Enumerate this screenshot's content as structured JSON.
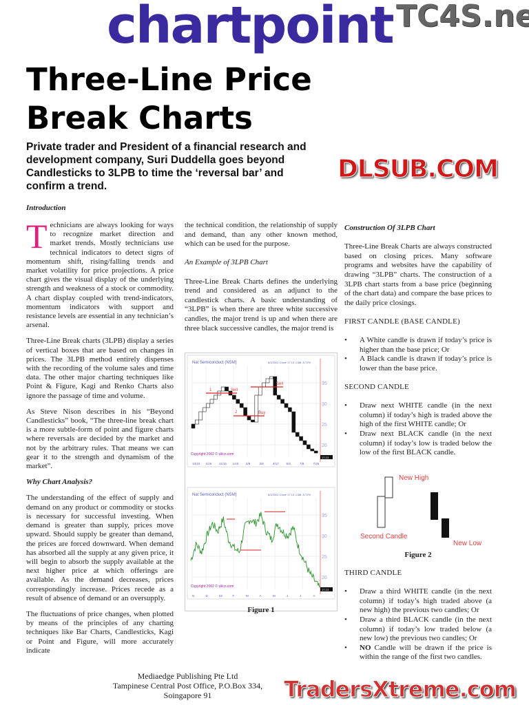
{
  "header": {
    "logo": "chartpoint",
    "watermark": "TC4S.net"
  },
  "article": {
    "title_line1": "Three-Line Price",
    "title_line2": "Break Charts",
    "subtitle": "Private trader and President of a financial research and development company, Suri Duddella goes beyond Candlesticks to 3LPB to time the ‘reversal bar’ and confirm a trend.",
    "intro_heading": "Introduction",
    "drop_cap": "T",
    "col1": {
      "p1": "echnicians are always looking for ways to recognize market direction and market trends. Mostly technicians use technical indicators to detect signs of momentum shift, rising/falling trends and market volatility for price projections. A price chart gives the visual display of the underlying strength and weakness of a stock or commodity. A chart display coupled with trend-indicators, momentum indicators with support and resistance levels are essential in any technician’s arsenal.",
      "p2": "Three-Line Break charts (3LPB) display a series of vertical boxes that are based on changes in prices. The 3LPB method entirely dispenses with the recording of the volume sales and time data. The other major charting techniques like Point & Figure, Kagi and Renko Charts also ignore the passage of time and volume.",
      "p3": "As Steve Nison describes in his “Beyond Candlesticks” book, “The three-line break chart is a more subtle-form of point and figure charts where reversals are decided by the market and not by the arbitrary rules. That means we can gear it to the strength and dynamism of the market”.",
      "h2": "Why Chart Analysis?",
      "p4": "The understanding of the effect of supply and demand on any product or commodity or stocks is necessary for successful investing. When demand is greater than supply, prices move upward. Should supply be greater than demand, the prices are forced downward. When demand has absorbed all the supply at any given price, it will begin to absorb the supply available at the next higher price at which offerings are available. As the demand decreases, prices correspondingly increase. Prices recede as a result of absence of demand or an oversupply.",
      "p5": "The fluctuations of price changes, when plotted by means of the principles of any charting techniques like Bar Charts, Candlesticks, Kagi or Point and Figure, will more accurately indicate"
    },
    "col2": {
      "p1": "the technical condition, the relationship of supply and demand, than any other known method, which can be used for the purpose.",
      "h1": "An Example of 3LPB Chart",
      "p2": "Three-Line Break Charts defines the underlying trend and considered as an adjunct to the candlestick charts. A basic understanding of “3LPB” is when there are three white successive candles, the major trend is up and when there are three black successive candles, the major trend is",
      "figure_caption": "Figure 1"
    },
    "col3": {
      "h1": "Construction Of 3LPB Chart",
      "p1": "Three-Line Break Charts are always constructed based on closing prices. Many software programs and websites have the capability of drawing “3LPB” charts. The construction of a 3LPB chart starts from a base price (beginning of the chart data) and compare the base prices to the daily price closings.",
      "h2": "FIRST CANDLE (BASE CANDLE)",
      "first": [
        "A White candle is drawn if today’s price is higher than the base price; Or",
        "A Black candle is drawn if today’s price is lower than the base price."
      ],
      "h3": "SECOND CANDLE",
      "second": [
        "Draw next WHITE candle (in the next column) if today’s high is traded above the high of the first WHITE candle; Or",
        "Draw next BLACK candle (in the next column) if today’s low is traded below the low of the first BLACK candle."
      ],
      "figure_caption": "Figure 2",
      "h4": "THIRD CANDLE",
      "third": [
        "Draw a third WHITE candle (in the next column) if today’s high traded above (a new high) the previous two candles; Or",
        "Draw a third BLACK candle (in the next column) if today’s low traded below (a new low) the previous two candles; Or",
        "Candle will be drawn if the price is within the range of the first two candles."
      ],
      "third_no": "NO"
    }
  },
  "figure1": {
    "chart_title": "Nat Semiconduct (NSM)",
    "quote": "8/1/2002 Close 17.13 -0.88 -5.72%",
    "copyright": "Copyright 2002 © silicn.com",
    "y_ticks": [
      "35",
      "30",
      "25",
      "20"
    ],
    "labels": {
      "sell1": "Sell",
      "buy": "Buy",
      "sell2": "Sell",
      "one": "1",
      "two": "2"
    },
    "top_x": [
      "10/10",
      "1/16",
      "11/15",
      "1/10",
      "2/8",
      "3/8",
      "4/17",
      "5/3",
      "7/8",
      "7/25"
    ],
    "bottom_x": [
      "N",
      "D",
      "02",
      "F",
      "M",
      "A",
      "M",
      "J",
      "J",
      "A"
    ],
    "last_price": "17.13"
  },
  "figure2": {
    "new_high": "New High",
    "second_candle": "Second Candle",
    "new_low": "New Low"
  },
  "footer": {
    "line1": "Mediaedge Publishing Pte Ltd",
    "line2": "Tampinese Central Post Office, P.O.Box 334, Soingapore 91"
  },
  "watermarks": {
    "mid": "DLSUB.COM",
    "bottom": "TradersXtreme.com"
  },
  "colors": {
    "logo": "#3a2aa0",
    "accent": "#e0207a",
    "watermark": "#d01818",
    "line": "#3a9a3a"
  }
}
